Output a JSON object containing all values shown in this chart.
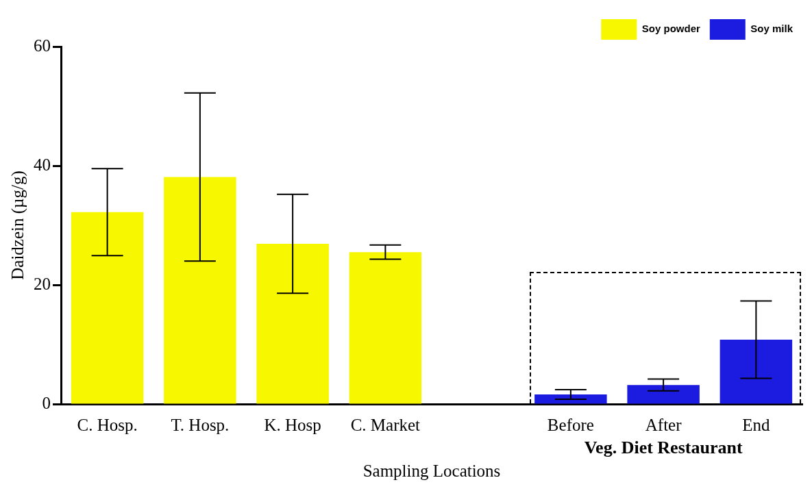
{
  "chart_data": {
    "type": "bar",
    "xlabel": "Sampling Locations",
    "ylabel": "Daidzein (µg/g)",
    "categories": [
      "C. Hosp.",
      "T. Hosp.",
      "K. Hosp",
      "C. Market",
      null,
      "Before",
      "After",
      "End"
    ],
    "series": [
      {
        "name": "Soy powder",
        "color": "#f7f700",
        "values": [
          32.2,
          38.1,
          26.9,
          25.5,
          null,
          null,
          null,
          null
        ],
        "errors": [
          7.3,
          14.1,
          8.3,
          1.2,
          null,
          null,
          null,
          null
        ]
      },
      {
        "name": "Soy milk",
        "color": "#1c1ce0",
        "values": [
          null,
          null,
          null,
          null,
          null,
          1.6,
          3.2,
          10.8
        ],
        "errors": [
          null,
          null,
          null,
          null,
          null,
          0.8,
          1.0,
          6.5
        ]
      }
    ],
    "ylim": [
      0,
      60
    ],
    "yticks": [
      0,
      20,
      40,
      60
    ],
    "grid": false,
    "legend": "top right",
    "annotations": [
      "Veg. Diet Restaurant"
    ]
  }
}
